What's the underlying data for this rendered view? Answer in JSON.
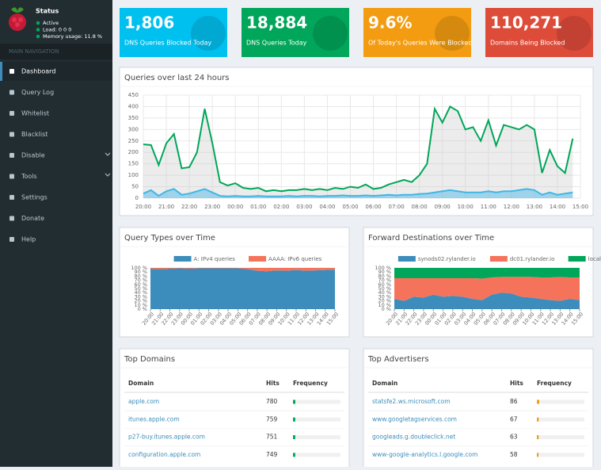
{
  "sidebar": {
    "status_title": "Status",
    "status_items": [
      "Active",
      "Load:  0  0  0",
      "Memory usage:  11.8 %"
    ],
    "section": "MAIN NAVIGATION",
    "nav": [
      "Dashboard",
      "Query Log",
      "Whitelist",
      "Blacklist",
      "Disable",
      "Tools",
      "Settings",
      "Donate",
      "Help"
    ]
  },
  "stats": [
    {
      "value": "1,806",
      "label": "DNS Queries Blocked Today",
      "color": "#00c0ef"
    },
    {
      "value": "18,884",
      "label": "DNS Queries Today",
      "color": "#00a65a"
    },
    {
      "value": "9.6%",
      "label": "Of Today's Queries Were Blocked",
      "color": "#f39c12"
    },
    {
      "value": "110,271",
      "label": "Domains Being Blocked",
      "color": "#dd4b39"
    }
  ],
  "queries_chart": {
    "type": "line",
    "title": "Queries over last 24 hours",
    "x": [
      "20:00",
      "20:20",
      "20:40",
      "21:00",
      "21:20",
      "21:40",
      "22:00",
      "22:20",
      "22:40",
      "23:00",
      "23:20",
      "23:40",
      "00:00",
      "00:20",
      "00:40",
      "01:00",
      "01:20",
      "01:40",
      "02:00",
      "02:20",
      "02:40",
      "03:00",
      "03:20",
      "03:40",
      "04:00",
      "04:20",
      "04:40",
      "05:00",
      "05:20",
      "05:40",
      "06:00",
      "06:20",
      "06:40",
      "07:00",
      "07:20",
      "07:40",
      "08:00",
      "08:20",
      "08:40",
      "09:00",
      "09:20",
      "09:40",
      "10:00",
      "10:20",
      "10:40",
      "11:00",
      "11:20",
      "11:40",
      "12:00",
      "12:20",
      "12:40",
      "13:00",
      "13:20",
      "13:40",
      "14:00",
      "14:20",
      "14:40"
    ],
    "series": [
      {
        "color": "#00a65a",
        "values": [
          235,
          232,
          145,
          240,
          280,
          130,
          135,
          200,
          390,
          240,
          70,
          55,
          65,
          45,
          40,
          45,
          30,
          35,
          30,
          35,
          35,
          40,
          35,
          40,
          35,
          45,
          40,
          50,
          45,
          60,
          40,
          45,
          60,
          70,
          80,
          70,
          100,
          150,
          390,
          330,
          400,
          380,
          300,
          310,
          250,
          340,
          230,
          320,
          310,
          300,
          320,
          300,
          110,
          210,
          140,
          110,
          260
        ]
      },
      {
        "color": "#41b6e6",
        "values": [
          20,
          35,
          10,
          30,
          40,
          15,
          20,
          30,
          40,
          25,
          10,
          8,
          10,
          8,
          8,
          10,
          8,
          8,
          8,
          10,
          8,
          10,
          10,
          8,
          10,
          10,
          12,
          10,
          10,
          12,
          10,
          12,
          15,
          12,
          15,
          15,
          18,
          20,
          25,
          30,
          35,
          30,
          25,
          25,
          25,
          30,
          25,
          30,
          30,
          35,
          40,
          35,
          15,
          25,
          15,
          20,
          25
        ]
      }
    ],
    "xlim": [
      "20:00",
      "15:00"
    ],
    "xticks": [
      "20:00",
      "21:00",
      "22:00",
      "23:00",
      "00:00",
      "01:00",
      "02:00",
      "03:00",
      "04:00",
      "05:00",
      "06:00",
      "07:00",
      "08:00",
      "09:00",
      "10:00",
      "11:00",
      "12:00",
      "13:00",
      "14:00",
      "15:00"
    ],
    "ylim": [
      0,
      450
    ],
    "yticks": [
      0,
      50,
      100,
      150,
      200,
      250,
      300,
      350,
      400,
      450
    ],
    "grid": true
  },
  "percent_charts": [
    {
      "type": "stacked_area",
      "title": "Query Types over Time",
      "categories": [
        "20:00",
        "21:00",
        "22:00",
        "23:00",
        "00:00",
        "01:00",
        "02:00",
        "03:00",
        "04:00",
        "05:00",
        "06:00",
        "07:00",
        "08:00",
        "09:00",
        "10:00",
        "11:00",
        "12:00",
        "13:00",
        "14:00",
        "15:00"
      ],
      "series": [
        {
          "name": "A: IPv4 queries",
          "color": "#3c8dbc",
          "values": [
            98,
            97,
            98,
            99,
            98,
            99,
            99,
            99,
            99,
            99,
            97,
            93,
            92,
            94,
            93,
            95,
            93,
            94,
            95,
            96
          ]
        },
        {
          "name": "AAAA: IPv6 queries",
          "color": "#f5735a",
          "values": [
            2,
            3,
            2,
            1,
            2,
            1,
            1,
            1,
            1,
            1,
            3,
            7,
            8,
            6,
            7,
            5,
            7,
            6,
            5,
            4
          ]
        }
      ],
      "ylim": [
        0,
        100
      ],
      "yticks": [
        {
          "value": 0,
          "label": "0 %"
        },
        {
          "value": 10,
          "label": "10 %"
        },
        {
          "value": 20,
          "label": "20 %"
        },
        {
          "value": 30,
          "label": "30 %"
        },
        {
          "value": 40,
          "label": "40 %"
        },
        {
          "value": 50,
          "label": "50 %"
        },
        {
          "value": 60,
          "label": "60 %"
        },
        {
          "value": 70,
          "label": "70 %"
        },
        {
          "value": 80,
          "label": "80 %"
        },
        {
          "value": 90,
          "label": "90 %"
        },
        {
          "value": 100,
          "label": "100 %"
        }
      ]
    },
    {
      "type": "stacked_area",
      "title": "Forward Destinations over Time",
      "categories": [
        "20:00",
        "21:00",
        "22:00",
        "23:00",
        "00:00",
        "01:00",
        "02:00",
        "03:00",
        "04:00",
        "05:00",
        "06:00",
        "07:00",
        "08:00",
        "09:00",
        "10:00",
        "11:00",
        "12:00",
        "13:00",
        "14:00",
        "15:00"
      ],
      "series": [
        {
          "name": "synods02.rylander.io",
          "color": "#3c8dbc",
          "values": [
            25,
            20,
            30,
            28,
            35,
            30,
            32,
            30,
            25,
            22,
            35,
            40,
            38,
            30,
            28,
            25,
            22,
            20,
            25,
            22
          ]
        },
        {
          "name": "dc01.rylander.io",
          "color": "#f5735a",
          "values": [
            50,
            55,
            45,
            47,
            40,
            45,
            43,
            45,
            50,
            52,
            42,
            38,
            40,
            48,
            50,
            52,
            55,
            58,
            52,
            55
          ]
        },
        {
          "name": "local",
          "color": "#00a65a",
          "values": [
            25,
            25,
            25,
            25,
            25,
            25,
            25,
            25,
            25,
            26,
            23,
            22,
            22,
            22,
            22,
            23,
            23,
            22,
            23,
            23
          ]
        }
      ],
      "ylim": [
        0,
        100
      ],
      "yticks": [
        {
          "value": 0,
          "label": "0 %"
        },
        {
          "value": 10,
          "label": "10 %"
        },
        {
          "value": 20,
          "label": "20 %"
        },
        {
          "value": 30,
          "label": "30 %"
        },
        {
          "value": 40,
          "label": "40 %"
        },
        {
          "value": 50,
          "label": "50 %"
        },
        {
          "value": 60,
          "label": "60 %"
        },
        {
          "value": 70,
          "label": "70 %"
        },
        {
          "value": 80,
          "label": "80 %"
        },
        {
          "value": 90,
          "label": "90 %"
        },
        {
          "value": 100,
          "label": "100 %"
        }
      ]
    }
  ],
  "tables": [
    {
      "title": "Top Domains",
      "columns": [
        "Domain",
        "Hits",
        "Frequency"
      ],
      "bar_color": "#00a65a",
      "rows": [
        {
          "domain": "apple.com",
          "hits": 780
        },
        {
          "domain": "itunes.apple.com",
          "hits": 759
        },
        {
          "domain": "p27-buy.itunes.apple.com",
          "hits": 751
        },
        {
          "domain": "configuration.apple.com",
          "hits": 749
        }
      ]
    },
    {
      "title": "Top Advertisers",
      "columns": [
        "Domain",
        "Hits",
        "Frequency"
      ],
      "bar_color": "#f39c12",
      "rows": [
        {
          "domain": "statsfe2.ws.microsoft.com",
          "hits": 86
        },
        {
          "domain": "www.googletagservices.com",
          "hits": 67
        },
        {
          "domain": "googleads.g.doubleclick.net",
          "hits": 63
        },
        {
          "domain": "www-google-analytics.l.google.com",
          "hits": 58
        }
      ]
    }
  ]
}
